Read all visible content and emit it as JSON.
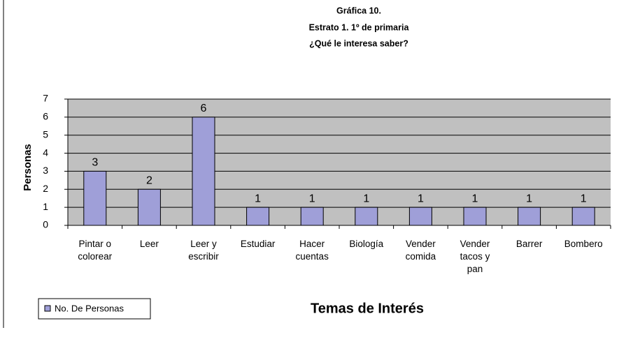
{
  "chart_data": {
    "type": "bar",
    "title": [
      "Gráfica 10.",
      "Estrato 1. 1º de primaria",
      "¿Qué le interesa saber?"
    ],
    "x_label": "Temas de Interés",
    "y_label": "Personas",
    "categories": [
      "Pintar o colorear",
      "Leer",
      "Leer y escribir",
      "Estudiar",
      "Hacer cuentas",
      "Biología",
      "Vender comida",
      "Vender tacos y pan",
      "Barrer",
      "Bombero"
    ],
    "series": [
      {
        "name": "No. De Personas",
        "color": "#9f9fd8",
        "values": [
          3,
          2,
          6,
          1,
          1,
          1,
          1,
          1,
          1,
          1
        ]
      }
    ],
    "ylim": [
      0,
      7
    ],
    "yticks": [
      0,
      1,
      2,
      3,
      4,
      5,
      6,
      7
    ],
    "grid": true,
    "legend": "bottom-left"
  }
}
